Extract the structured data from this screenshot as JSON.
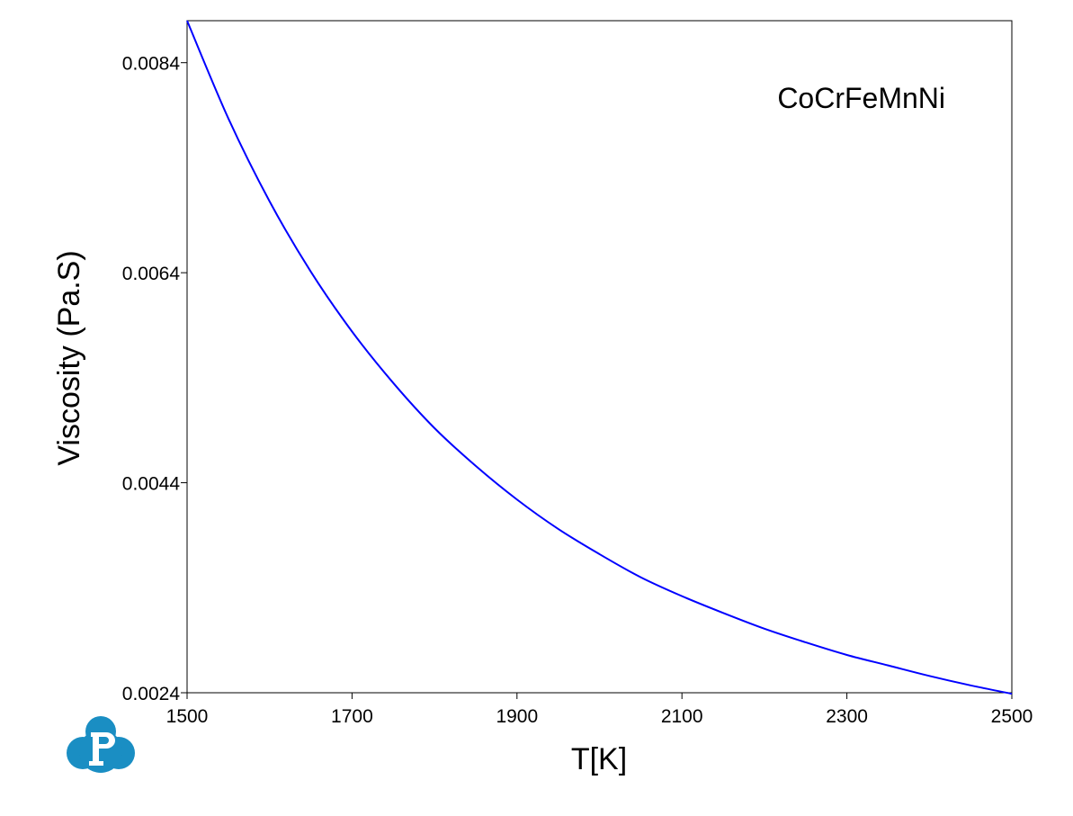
{
  "chart_data": {
    "type": "line",
    "title": "",
    "xlabel": "T[K]",
    "ylabel": "Viscosity (Pa.S)",
    "xlim": [
      1500,
      2500
    ],
    "ylim": [
      0.0024,
      0.0088
    ],
    "xticks": [
      1500,
      1700,
      1900,
      2100,
      2300,
      2500
    ],
    "xtick_labels": [
      "1500",
      "1700",
      "1900",
      "2100",
      "2300",
      "2500"
    ],
    "yticks": [
      0.0024,
      0.0044,
      0.0064,
      0.0084
    ],
    "ytick_labels": [
      "0.0024",
      "0.0044",
      "0.0064",
      "0.0084"
    ],
    "grid": false,
    "annotation": "CoCrFeMnNi",
    "series": [
      {
        "color": "#0000ff",
        "x": [
          1500,
          1550,
          1600,
          1650,
          1700,
          1750,
          1800,
          1850,
          1900,
          1950,
          2000,
          2050,
          2100,
          2150,
          2200,
          2250,
          2300,
          2350,
          2400,
          2450,
          2500
        ],
        "y": [
          0.0088,
          0.00787,
          0.00708,
          0.00641,
          0.00584,
          0.00535,
          0.00492,
          0.00456,
          0.00424,
          0.00396,
          0.00372,
          0.0035,
          0.00332,
          0.00316,
          0.00301,
          0.00288,
          0.00276,
          0.00266,
          0.00256,
          0.00247,
          0.00239
        ]
      }
    ]
  }
}
